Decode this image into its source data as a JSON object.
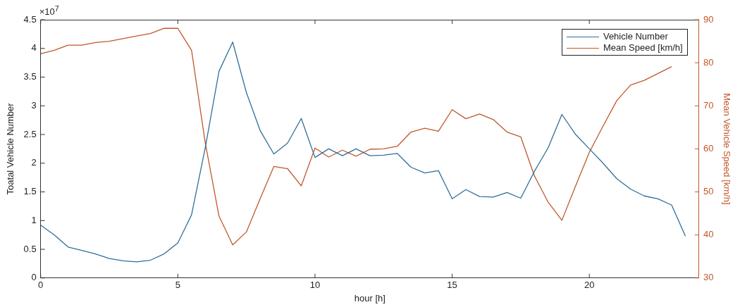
{
  "chart_data": {
    "type": "line",
    "xlabel": "hour [h]",
    "ylabel": "Toatal Vehicle Number",
    "y2label": "Mean Vehicle Speed [km/h]",
    "annotations": [
      "×10$^{7}$"
    ],
    "x": [
      0,
      0.5,
      1,
      1.5,
      2,
      2.5,
      3,
      3.5,
      4,
      4.5,
      5,
      5.5,
      6,
      6.5,
      7,
      7.5,
      8,
      8.5,
      9,
      9.5,
      10,
      10.5,
      11,
      11.5,
      12,
      12.5,
      13,
      13.5,
      14,
      14.5,
      15,
      15.5,
      16,
      16.5,
      17,
      17.5,
      18,
      18.5,
      19,
      19.5,
      20,
      20.5,
      21,
      21.5,
      22,
      22.5,
      23,
      23.5
    ],
    "series": [
      {
        "name": "Vehicle Number",
        "color": "#2f6f9a",
        "values": [
          0.92,
          0.75,
          0.54,
          0.48,
          0.42,
          0.34,
          0.3,
          0.28,
          0.31,
          0.42,
          0.61,
          1.1,
          2.27,
          3.6,
          4.11,
          3.23,
          2.57,
          2.16,
          2.35,
          2.78,
          2.1,
          2.25,
          2.13,
          2.25,
          2.13,
          2.14,
          2.17,
          1.93,
          1.83,
          1.87,
          1.38,
          1.54,
          1.42,
          1.41,
          1.49,
          1.39,
          1.86,
          2.27,
          2.85,
          2.5,
          2.25,
          2.0,
          1.73,
          1.55,
          1.43,
          1.38,
          1.27,
          0.73
        ]
      },
      {
        "name": "Mean Speed [km/h]",
        "color": "#c0582a",
        "axis": "y2",
        "values": [
          82.1,
          82.9,
          84.1,
          84.1,
          84.7,
          85.0,
          85.6,
          86.2,
          86.8,
          88.0,
          88.0,
          82.9,
          61.4,
          44.4,
          37.7,
          40.7,
          48.4,
          55.9,
          55.4,
          51.4,
          60.2,
          58.1,
          59.7,
          58.3,
          59.9,
          60.0,
          60.6,
          63.9,
          64.8,
          64.1,
          69.1,
          67.0,
          68.1,
          66.8,
          63.9,
          62.8,
          53.7,
          47.6,
          43.4,
          51.4,
          59.2,
          65.3,
          71.2,
          74.8,
          75.9,
          77.5,
          79.1,
          null
        ]
      }
    ],
    "xlim": [
      0,
      24
    ],
    "xticks": [
      0,
      5,
      10,
      15,
      20
    ],
    "ylim": [
      0,
      4.5
    ],
    "yticks": [
      0,
      0.5,
      1,
      1.5,
      2,
      2.5,
      3,
      3.5,
      4,
      4.5
    ],
    "y2lim": [
      30,
      90
    ],
    "y2ticks": [
      30,
      40,
      50,
      60,
      70,
      80,
      90
    ],
    "grid": false,
    "legend": "top right",
    "marker": "none",
    "line_style": "solid"
  }
}
